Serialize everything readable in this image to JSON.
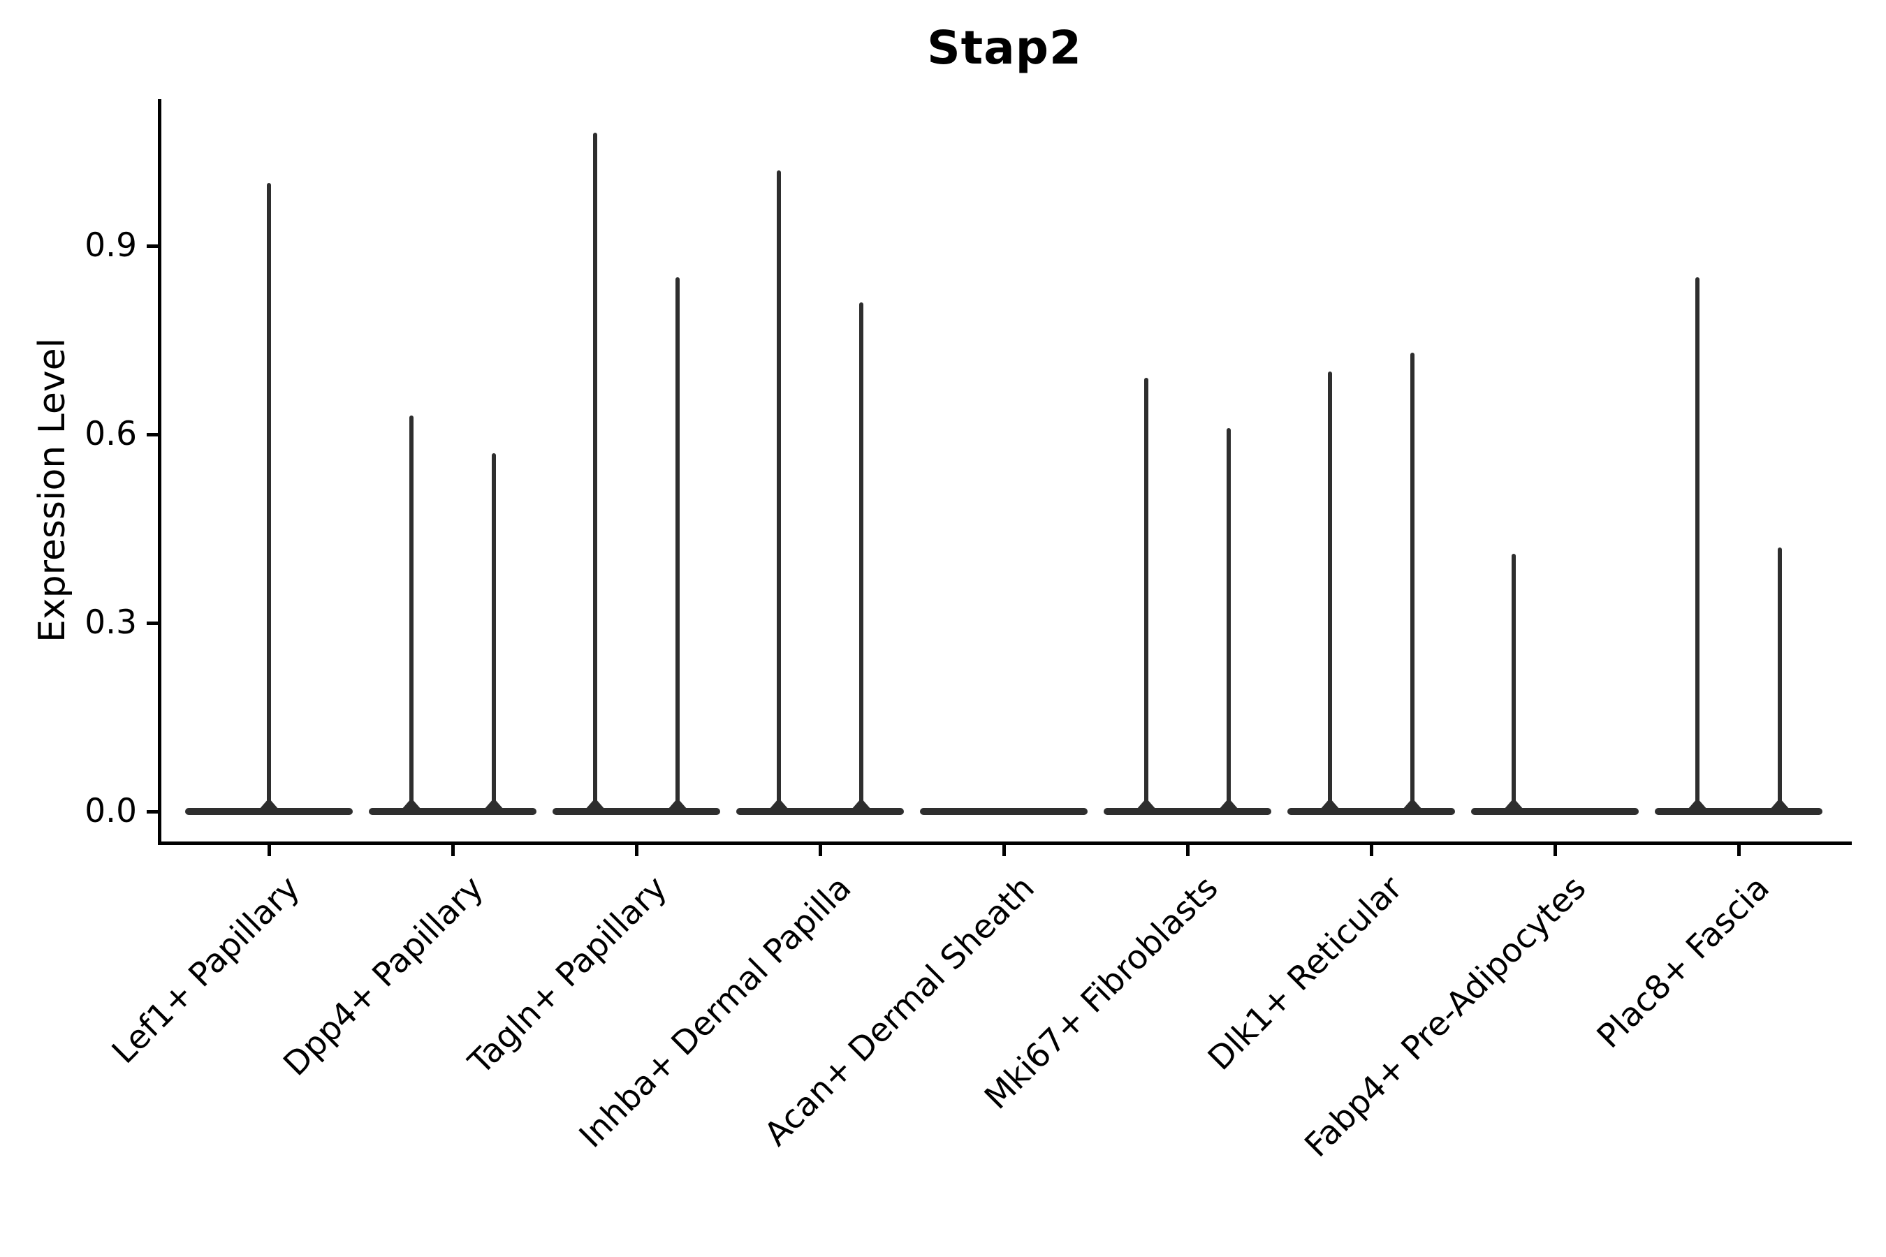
{
  "chart_data": {
    "type": "violin",
    "title": "Stap2",
    "xlabel": "",
    "ylabel": "Expression Level",
    "ylim": [
      -0.05,
      1.13
    ],
    "grid": false,
    "legend": "none",
    "yticks": [
      {
        "value": 0.0,
        "label": "0.0"
      },
      {
        "value": 0.3,
        "label": "0.3"
      },
      {
        "value": 0.6,
        "label": "0.6"
      },
      {
        "value": 0.9,
        "label": "0.9"
      }
    ],
    "violin_color": "#2e2e2e",
    "axis_color": "#000000",
    "categories": [
      {
        "label": "Lef1+ Papillary",
        "violins": [
          {
            "position": "center",
            "peak": 1.0
          }
        ]
      },
      {
        "label": "Dpp4+ Papillary",
        "violins": [
          {
            "position": "left",
            "peak": 0.63
          },
          {
            "position": "right",
            "peak": 0.57
          }
        ]
      },
      {
        "label": "Tagln+ Papillary",
        "violins": [
          {
            "position": "left",
            "peak": 1.08
          },
          {
            "position": "right",
            "peak": 0.85
          }
        ]
      },
      {
        "label": "Inhba+ Dermal Papilla",
        "violins": [
          {
            "position": "left",
            "peak": 1.02
          },
          {
            "position": "right",
            "peak": 0.81
          }
        ]
      },
      {
        "label": "Acan+ Dermal Sheath",
        "violins": [
          {
            "position": "left",
            "peak": 0.0
          },
          {
            "position": "right",
            "peak": 0.0
          }
        ]
      },
      {
        "label": "Mki67+ Fibroblasts",
        "violins": [
          {
            "position": "left",
            "peak": 0.69
          },
          {
            "position": "right",
            "peak": 0.61
          }
        ]
      },
      {
        "label": "Dlk1+ Reticular",
        "violins": [
          {
            "position": "left",
            "peak": 0.7
          },
          {
            "position": "right",
            "peak": 0.73
          }
        ]
      },
      {
        "label": "Fabp4+ Pre-Adipocytes",
        "violins": [
          {
            "position": "left",
            "peak": 0.41
          },
          {
            "position": "right",
            "peak": 0.0
          }
        ]
      },
      {
        "label": "Plac8+ Fascia",
        "violins": [
          {
            "position": "left",
            "peak": 0.85
          },
          {
            "position": "right",
            "peak": 0.42
          }
        ]
      }
    ]
  }
}
